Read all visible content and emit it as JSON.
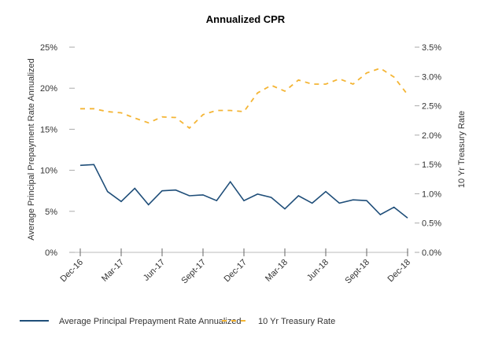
{
  "chart_data": {
    "type": "line",
    "title": "Annualized CPR",
    "ylabel": "Average Principal Prepayment Rate Annualized",
    "y2label": "10 Yr Treasury Rate",
    "ylim": [
      0,
      25
    ],
    "y2lim": [
      0,
      3.5
    ],
    "yticks": [
      "0%",
      "5%",
      "10%",
      "15%",
      "20%",
      "25%"
    ],
    "y2ticks": [
      "0.0%",
      "0.5%",
      "1.0%",
      "1.5%",
      "2.0%",
      "2.5%",
      "3.0%",
      "3.5%"
    ],
    "xticklabels": [
      "Dec-16",
      "Mar-17",
      "Jun-17",
      "Sept-17",
      "Dec-17",
      "Mar-18",
      "Jun-18",
      "Sept-18",
      "Dec-18"
    ],
    "x": [
      "2016-12",
      "2017-01",
      "2017-02",
      "2017-03",
      "2017-04",
      "2017-05",
      "2017-06",
      "2017-07",
      "2017-08",
      "2017-09",
      "2017-10",
      "2017-11",
      "2017-12",
      "2018-01",
      "2018-02",
      "2018-03",
      "2018-04",
      "2018-05",
      "2018-06",
      "2018-07",
      "2018-08",
      "2018-09",
      "2018-10",
      "2018-11",
      "2018-12"
    ],
    "legend": "bottom",
    "grid": false,
    "series": [
      {
        "name": "Average Principal Prepayment Rate Annualized",
        "axis": "left",
        "style": "solid",
        "color": "#1f4e79",
        "values": [
          10.6,
          10.7,
          7.4,
          6.2,
          7.8,
          5.8,
          7.5,
          7.6,
          6.9,
          7.0,
          6.3,
          8.6,
          6.3,
          7.1,
          6.7,
          5.3,
          6.9,
          6.0,
          7.4,
          6.0,
          6.4,
          6.3,
          4.6,
          5.5,
          4.2
        ]
      },
      {
        "name": "10 Yr Treasury Rate",
        "axis": "right",
        "style": "dashed",
        "color": "#f4b535",
        "values": [
          2.45,
          2.45,
          2.4,
          2.38,
          2.29,
          2.21,
          2.31,
          2.3,
          2.12,
          2.35,
          2.42,
          2.42,
          2.4,
          2.72,
          2.85,
          2.75,
          2.94,
          2.87,
          2.87,
          2.96,
          2.87,
          3.06,
          3.14,
          2.99,
          2.69
        ]
      }
    ]
  }
}
